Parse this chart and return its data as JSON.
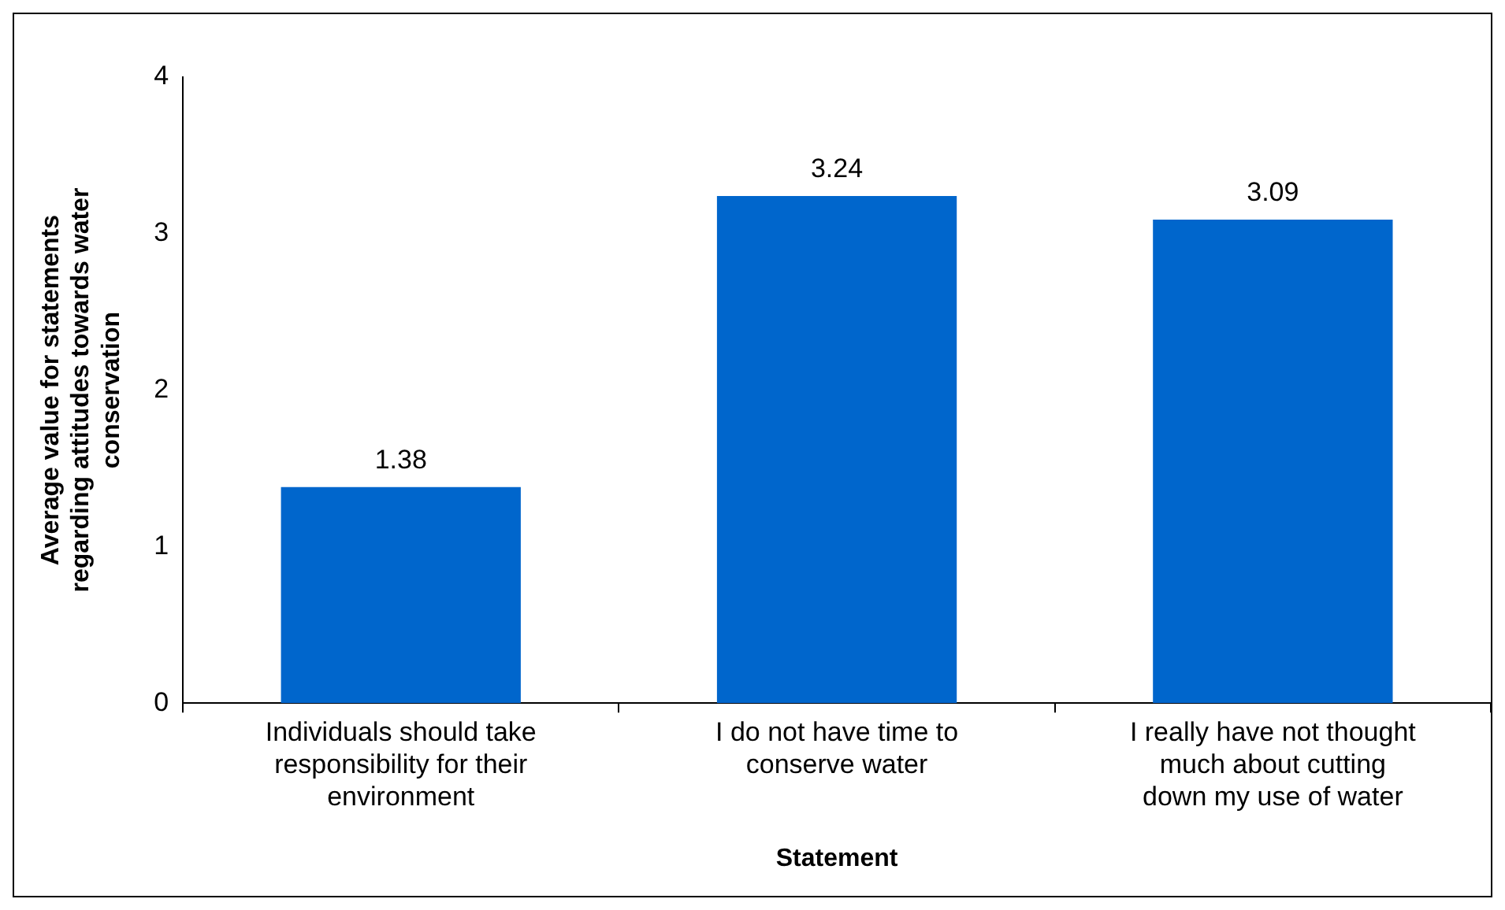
{
  "chart_data": {
    "type": "bar",
    "xlabel": "Statement",
    "ylabel": "Average value for statements regarding attitudes towards water conservation",
    "categories": [
      "Individuals should take responsibility for their environment",
      "I do not have time to conserve water",
      "I really have not thought much about cutting down my use of water"
    ],
    "values": [
      1.38,
      3.24,
      3.09
    ],
    "color": "#0066cc",
    "ylim": [
      0,
      4
    ],
    "yticks": [
      0,
      1,
      2,
      3,
      4
    ],
    "grid": false,
    "legend": false,
    "data_labels": true
  }
}
